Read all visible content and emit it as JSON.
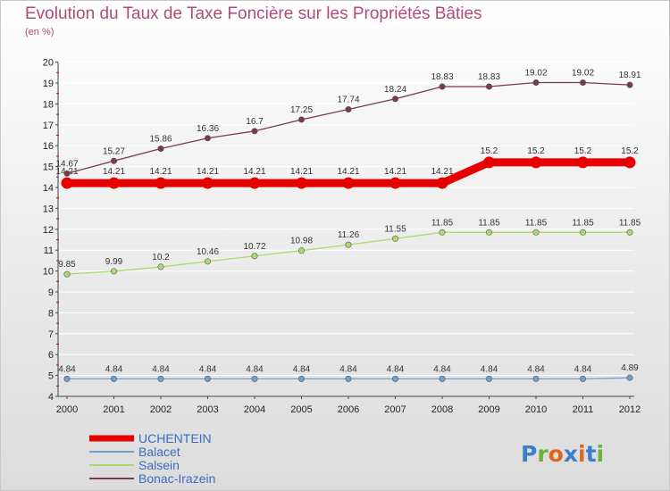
{
  "title": "Evolution du Taux de Taxe Foncière sur les Propriétés Bâties",
  "unit_label": "(en %)",
  "watermark": "Proxiti",
  "chart_data": {
    "type": "line",
    "title": "Evolution du Taux de Taxe Foncière sur les Propriétés Bâties",
    "ylabel": "(en %)",
    "xlabel": "",
    "ylim": [
      4,
      20
    ],
    "yticks": [
      4,
      5,
      6,
      7,
      8,
      9,
      10,
      11,
      12,
      13,
      14,
      15,
      16,
      17,
      18,
      19,
      20
    ],
    "x": [
      "2000",
      "2001",
      "2002",
      "2003",
      "2004",
      "2005",
      "2006",
      "2007",
      "2008",
      "2009",
      "2010",
      "2011",
      "2012"
    ],
    "series": [
      {
        "name": "UCHENTEIN",
        "color": "#e60000",
        "values": [
          14.21,
          14.21,
          14.21,
          14.21,
          14.21,
          14.21,
          14.21,
          14.21,
          14.21,
          15.2,
          15.2,
          15.2,
          15.2
        ],
        "labels": [
          "14.21",
          "14.21",
          "14.21",
          "14.21",
          "14.21",
          "14.21",
          "14.21",
          "14.21",
          "14.21",
          "15.2",
          "15.2",
          "15.2",
          "15.2"
        ]
      },
      {
        "name": "Balacet",
        "color": "#6fa1cf",
        "values": [
          4.84,
          4.84,
          4.84,
          4.84,
          4.84,
          4.84,
          4.84,
          4.84,
          4.84,
          4.84,
          4.84,
          4.84,
          4.89
        ],
        "labels": [
          "4.84",
          "4.84",
          "4.84",
          "4.84",
          "4.84",
          "4.84",
          "4.84",
          "4.84",
          "4.84",
          "4.84",
          "4.84",
          "4.84",
          "4.89"
        ]
      },
      {
        "name": "Salsein",
        "color": "#a8dd6e",
        "values": [
          9.85,
          9.99,
          10.2,
          10.46,
          10.72,
          10.98,
          11.26,
          11.55,
          11.85,
          11.85,
          11.85,
          11.85,
          11.85
        ],
        "labels": [
          "9.85",
          "9.99",
          "10.2",
          "10.46",
          "10.72",
          "10.98",
          "11.26",
          "11.55",
          "11.85",
          "11.85",
          "11.85",
          "11.85",
          "11.85"
        ]
      },
      {
        "name": "Bonac-Irazein",
        "color": "#7a3a46",
        "values": [
          14.67,
          15.27,
          15.86,
          16.36,
          16.7,
          17.25,
          17.74,
          18.24,
          18.83,
          18.83,
          19.02,
          19.02,
          18.91
        ],
        "labels": [
          "14.67",
          "15.27",
          "15.86",
          "16.36",
          "16.7",
          "17.25",
          "17.74",
          "18.24",
          "18.83",
          "18.83",
          "19.02",
          "19.02",
          "18.91"
        ]
      }
    ]
  }
}
